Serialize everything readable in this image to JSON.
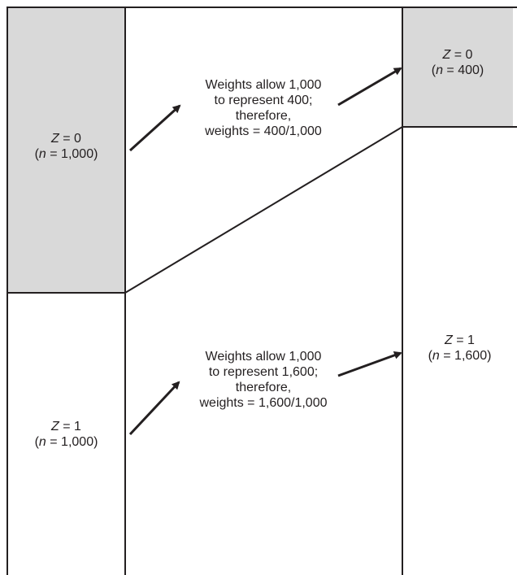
{
  "left_column": {
    "top_box": {
      "variable": "Z",
      "value_text": " = 0",
      "n_open": "(",
      "n_var": "n",
      "n_text": " = 1,000)"
    },
    "bottom_box": {
      "variable": "Z",
      "value_text": " = 1",
      "n_open": "(",
      "n_var": "n",
      "n_text": " = 1,000)"
    }
  },
  "right_column": {
    "top_box": {
      "variable": "Z",
      "value_text": " = 0",
      "n_open": "(",
      "n_var": "n",
      "n_text": " = 400)"
    },
    "bottom_box": {
      "variable": "Z",
      "value_text": " = 1",
      "n_open": "(",
      "n_var": "n",
      "n_text": " = 1,600)"
    }
  },
  "annotations": {
    "upper": [
      "Weights allow 1,000",
      "to represent 400;",
      "therefore,",
      "weights = 400/1,000"
    ],
    "lower": [
      "Weights allow 1,000",
      "to represent 1,600;",
      "therefore,",
      "weights = 1,600/1,000"
    ]
  },
  "colors": {
    "shaded_fill": "#d9d9d9",
    "line": "#231f20"
  }
}
